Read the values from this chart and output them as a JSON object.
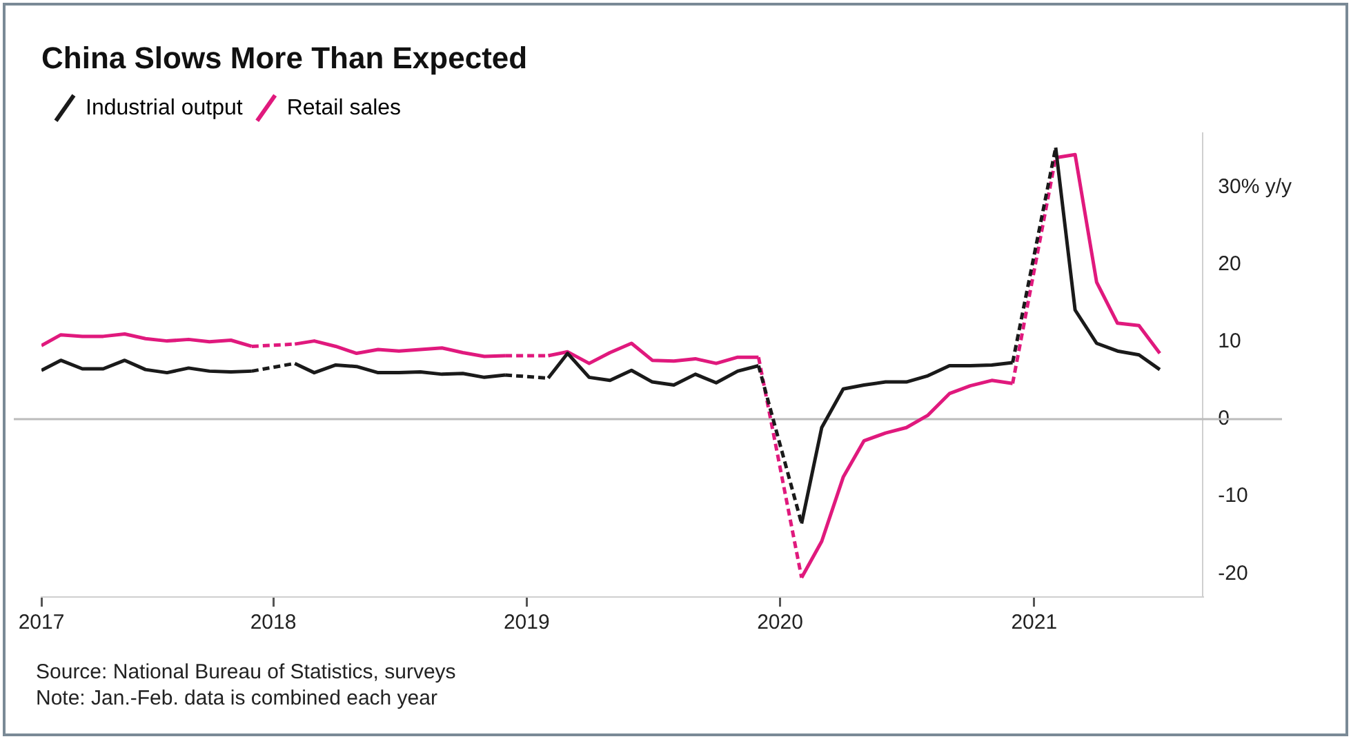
{
  "chart_data": {
    "type": "line",
    "title": "China Slows More Than Expected",
    "x": [
      "2017-02",
      "2017-03",
      "2017-04",
      "2017-05",
      "2017-06",
      "2017-07",
      "2017-08",
      "2017-09",
      "2017-10",
      "2017-11",
      "2017-12",
      "2018-02",
      "2018-03",
      "2018-04",
      "2018-05",
      "2018-06",
      "2018-07",
      "2018-08",
      "2018-09",
      "2018-10",
      "2018-11",
      "2018-12",
      "2019-02",
      "2019-03",
      "2019-04",
      "2019-05",
      "2019-06",
      "2019-07",
      "2019-08",
      "2019-09",
      "2019-10",
      "2019-11",
      "2019-12",
      "2020-02",
      "2020-03",
      "2020-04",
      "2020-05",
      "2020-06",
      "2020-07",
      "2020-08",
      "2020-09",
      "2020-10",
      "2020-11",
      "2020-12",
      "2021-02",
      "2021-03",
      "2021-04",
      "2021-05",
      "2021-06",
      "2021-07"
    ],
    "series": [
      {
        "name": "Industrial output",
        "color": "#1a1a1a",
        "values": [
          6.3,
          7.6,
          6.5,
          6.5,
          7.6,
          6.4,
          6.0,
          6.6,
          6.2,
          6.1,
          6.2,
          7.2,
          6.0,
          7.0,
          6.8,
          6.0,
          6.0,
          6.1,
          5.8,
          5.9,
          5.4,
          5.7,
          5.3,
          8.5,
          5.4,
          5.0,
          6.3,
          4.8,
          4.4,
          5.8,
          4.7,
          6.2,
          6.9,
          -13.5,
          -1.1,
          3.9,
          4.4,
          4.8,
          4.8,
          5.6,
          6.9,
          6.9,
          7.0,
          7.3,
          35.1,
          14.1,
          9.8,
          8.8,
          8.3,
          6.4
        ]
      },
      {
        "name": "Retail sales",
        "color": "#e0197d",
        "values": [
          9.5,
          10.9,
          10.7,
          10.7,
          11.0,
          10.4,
          10.1,
          10.3,
          10.0,
          10.2,
          9.4,
          9.7,
          10.1,
          9.4,
          8.5,
          9.0,
          8.8,
          9.0,
          9.2,
          8.6,
          8.1,
          8.2,
          8.2,
          8.7,
          7.2,
          8.6,
          9.8,
          7.6,
          7.5,
          7.8,
          7.2,
          8.0,
          8.0,
          -20.5,
          -15.8,
          -7.5,
          -2.8,
          -1.8,
          -1.1,
          0.5,
          3.3,
          4.3,
          5.0,
          4.6,
          33.8,
          34.2,
          17.7,
          12.4,
          12.1,
          8.5
        ]
      }
    ],
    "xlim": [
      "2017-02",
      "2021-09"
    ],
    "xticks": [
      {
        "value": "2017-02",
        "label": "2017"
      },
      {
        "value": "2018-01",
        "label": "2018"
      },
      {
        "value": "2019-01",
        "label": "2019"
      },
      {
        "value": "2020-01",
        "label": "2020"
      },
      {
        "value": "2021-01",
        "label": "2021"
      }
    ],
    "ylim": [
      -23,
      37
    ],
    "yticks": [
      {
        "value": 30,
        "label": "30% y/y"
      },
      20,
      10,
      0,
      -10,
      -20
    ],
    "ref_lines": [
      {
        "axis": "y",
        "value": 0,
        "color": "#bbbbbb"
      }
    ],
    "legend": "top left",
    "grid": false,
    "marker": "none",
    "line_style": "solid",
    "annotations": [
      "Source: National Bureau of Statistics, surveys",
      "Note: Jan.-Feb. data is combined each year"
    ]
  }
}
